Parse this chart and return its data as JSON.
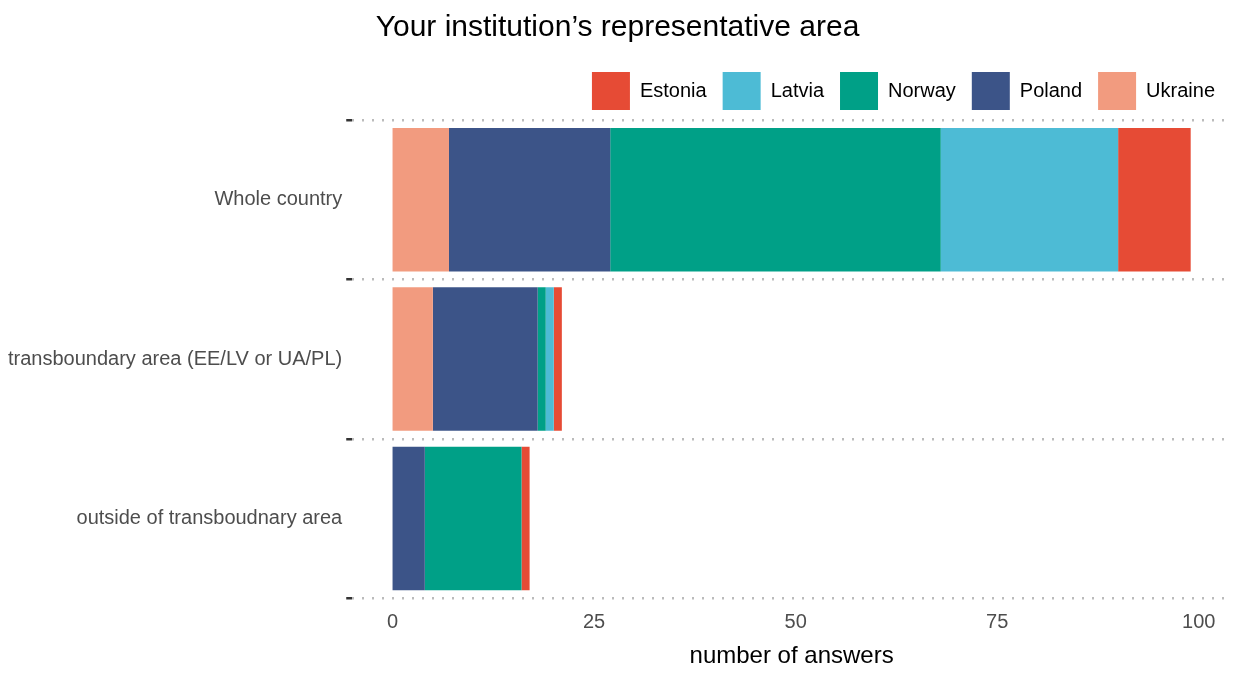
{
  "chart_data": {
    "type": "bar",
    "orientation": "horizontal",
    "stacked": true,
    "title": "Your institution’s representative area",
    "xlabel": "number of answers",
    "categories": [
      "Whole country",
      "transboundary area (EE/LV or UA/PL)",
      "outside of transboudnary area"
    ],
    "series": [
      {
        "name": "Ukraine",
        "color": "#f29b7f",
        "values": [
          7,
          5,
          0
        ]
      },
      {
        "name": "Poland",
        "color": "#3c5488",
        "values": [
          20,
          13,
          4
        ]
      },
      {
        "name": "Norway",
        "color": "#00a087",
        "values": [
          41,
          1,
          12
        ]
      },
      {
        "name": "Latvia",
        "color": "#4dbbd5",
        "values": [
          22,
          1,
          0
        ]
      },
      {
        "name": "Estonia",
        "color": "#e64b35",
        "values": [
          9,
          1,
          1
        ]
      }
    ],
    "xlim": [
      -5,
      104
    ],
    "xticks": [
      0,
      25,
      50,
      75,
      100
    ],
    "grid": "y",
    "legend": "top"
  }
}
